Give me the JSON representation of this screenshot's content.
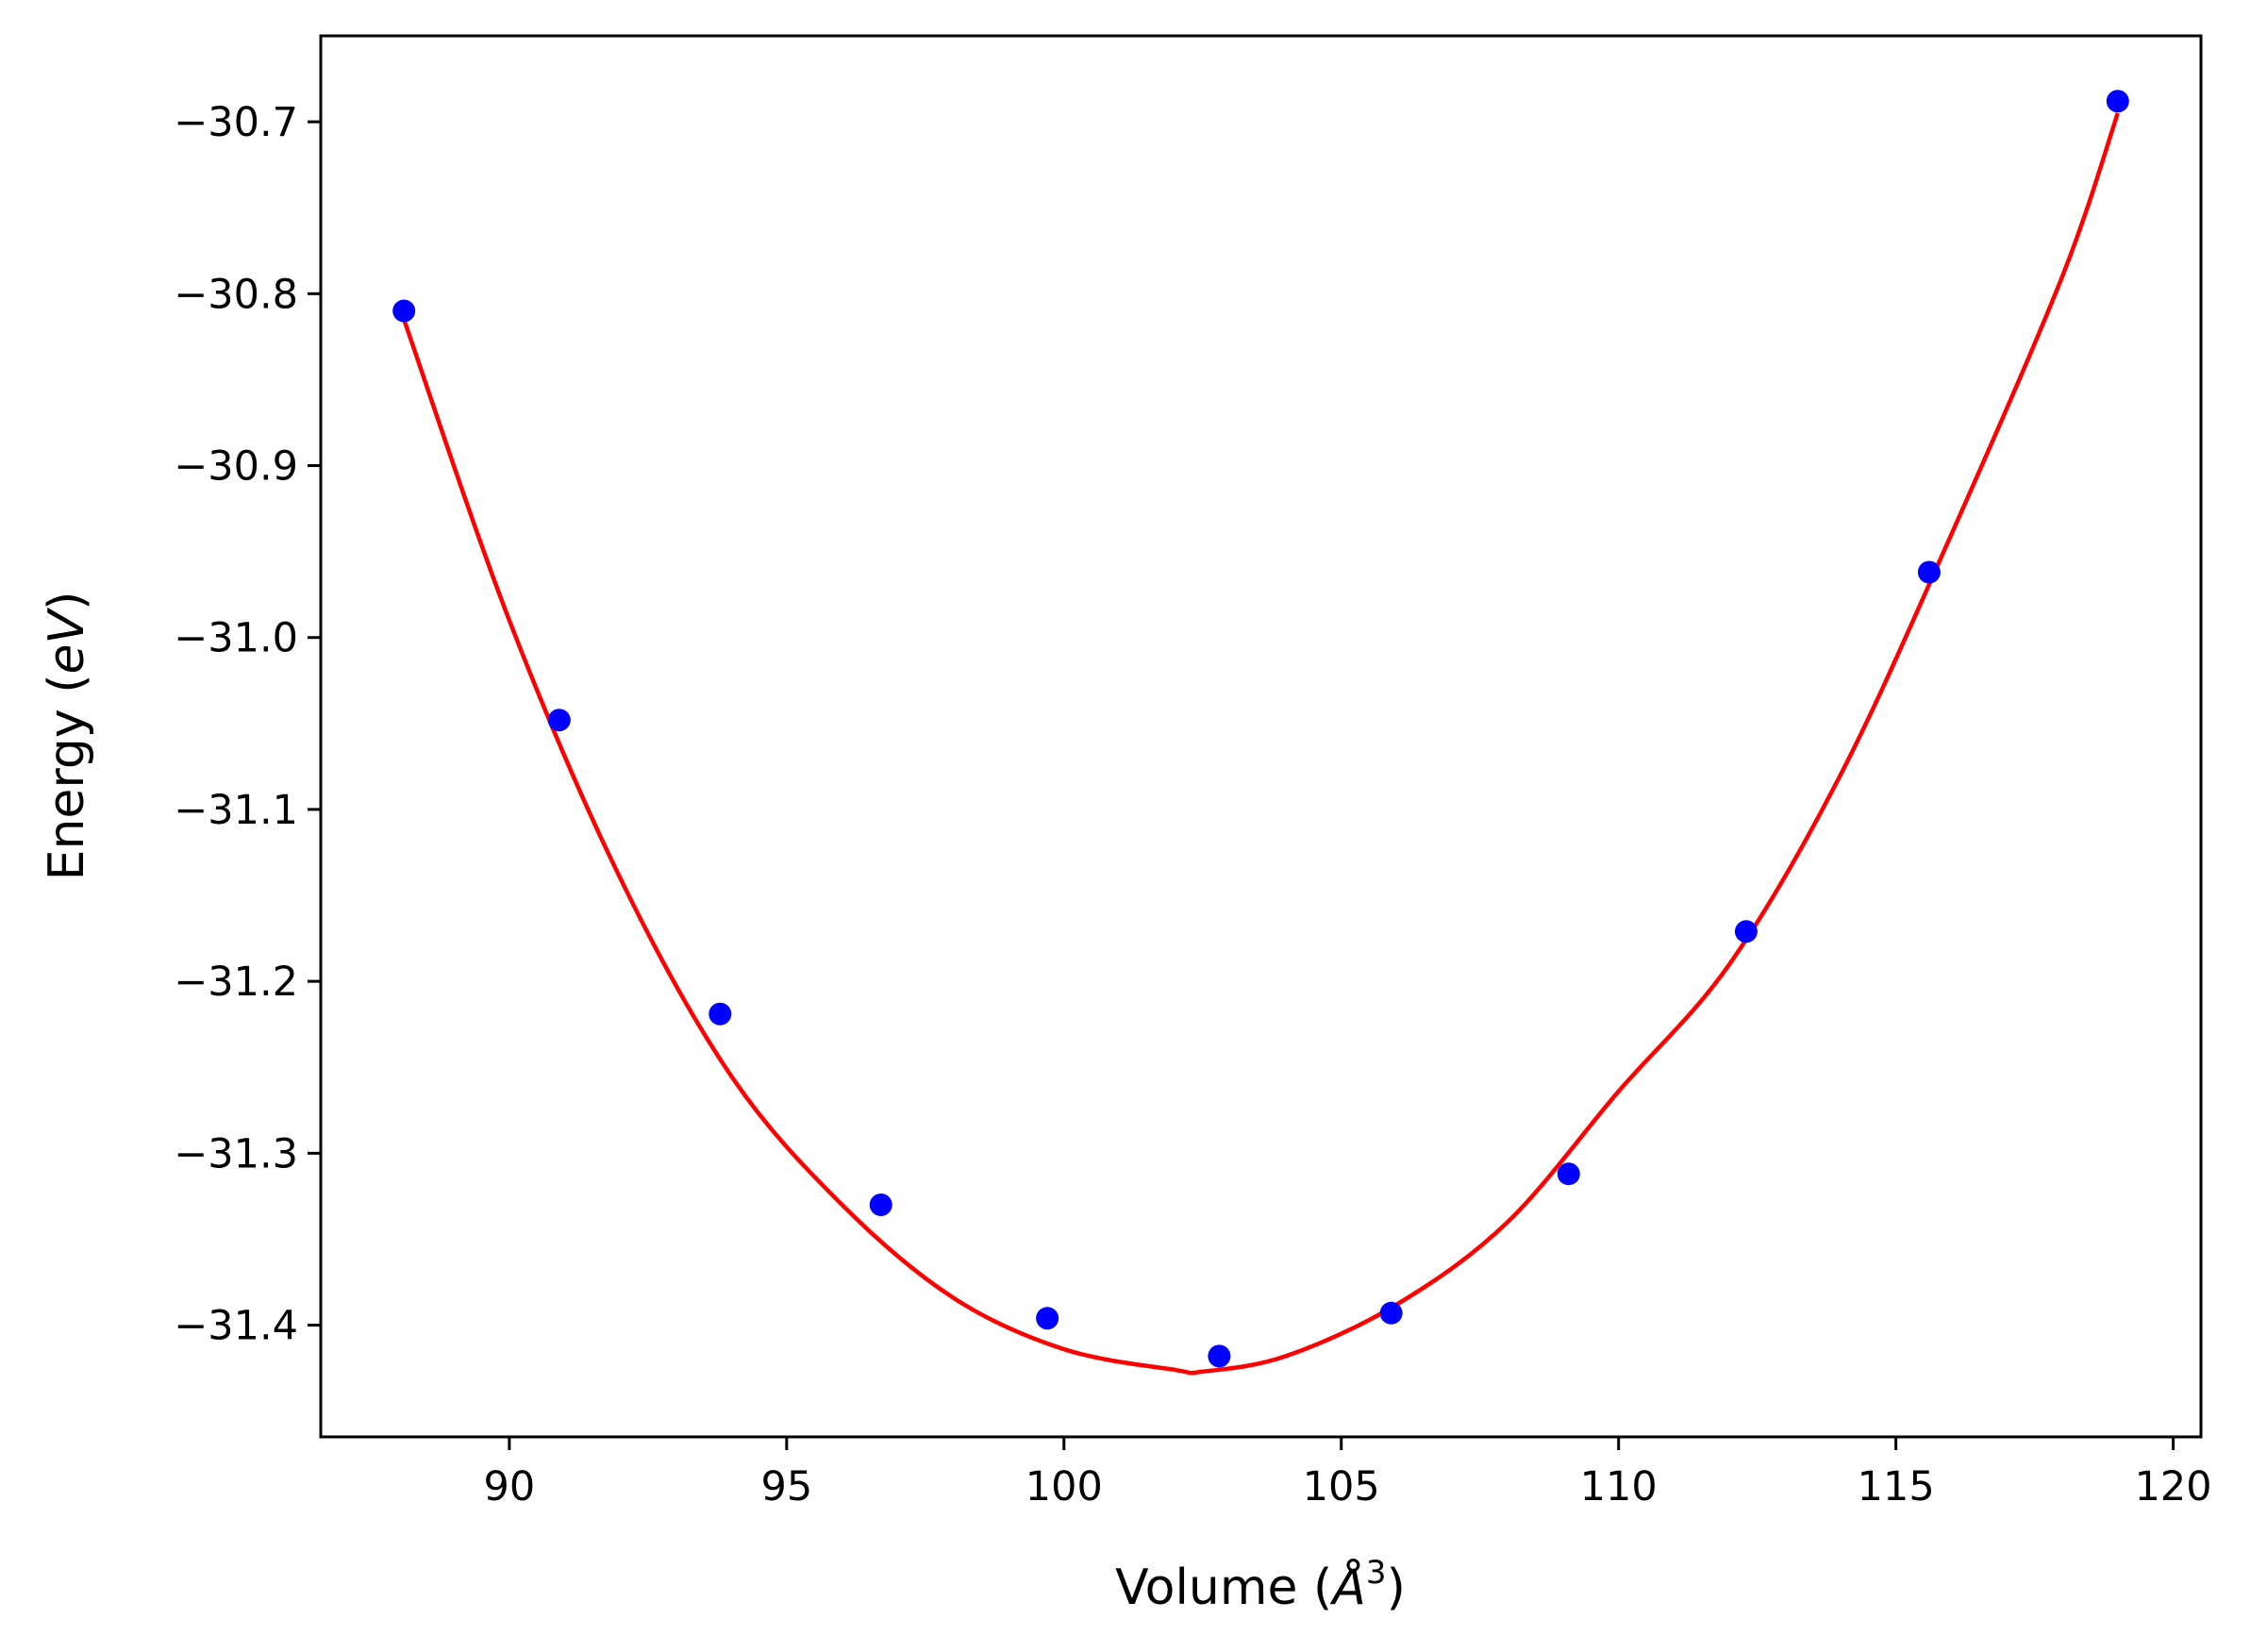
{
  "chart_data": {
    "type": "scatter",
    "title": "",
    "xlabel": {
      "prefix": "Volume (",
      "symbol": "Å",
      "superscript": "3",
      "suffix": ")"
    },
    "ylabel": {
      "prefix": "Energy (",
      "italic": "eV",
      "suffix": ")"
    },
    "xlim": [
      86.6,
      120.5
    ],
    "ylim": [
      -31.465,
      -30.65
    ],
    "xticks": [
      90,
      95,
      100,
      105,
      110,
      115,
      120
    ],
    "yticks": [
      -31.4,
      -31.3,
      -31.2,
      -31.1,
      -31.0,
      -30.9,
      -30.8,
      -30.7
    ],
    "ytick_labels": [
      "−31.4",
      "−31.3",
      "−31.2",
      "−31.1",
      "−31.0",
      "−30.9",
      "−30.8",
      "−30.7"
    ],
    "grid": false,
    "legend": "none",
    "series": [
      {
        "kind": "points",
        "color": "#0000ff",
        "x": [
          88.1,
          90.9,
          93.8,
          96.7,
          99.7,
          102.8,
          105.9,
          109.1,
          112.3,
          115.6,
          119.0
        ],
        "y": [
          -30.81,
          -31.048,
          -31.219,
          -31.33,
          -31.396,
          -31.418,
          -31.393,
          -31.312,
          -31.171,
          -30.962,
          -30.688
        ]
      },
      {
        "kind": "line",
        "color": "#ff0000",
        "x": [
          88.1,
          90.0,
          92.0,
          94.0,
          96.0,
          98.0,
          100.0,
          102.0,
          102.5,
          104.0,
          106.0,
          108.0,
          110.0,
          112.0,
          114.0,
          116.0,
          118.0,
          119.0
        ],
        "y": [
          -30.815,
          -30.99,
          -31.14,
          -31.255,
          -31.33,
          -31.384,
          -31.414,
          -31.426,
          -31.427,
          -31.418,
          -31.388,
          -31.34,
          -31.264,
          -31.19,
          -31.08,
          -30.94,
          -30.79,
          -30.695
        ]
      }
    ]
  }
}
